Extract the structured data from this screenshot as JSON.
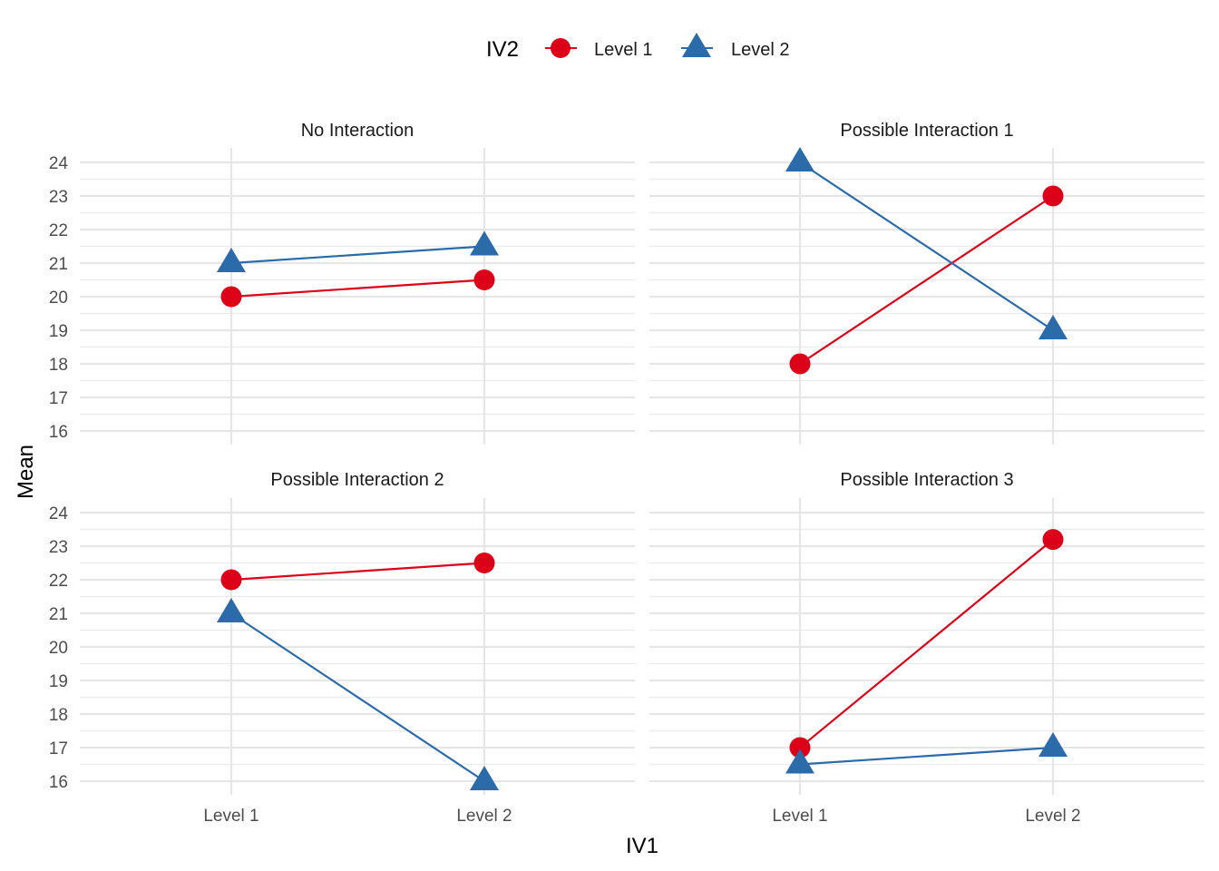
{
  "chart_data": {
    "type": "line",
    "xlabel": "IV1",
    "ylabel": "Mean",
    "ylim": [
      15.6,
      24.4
    ],
    "yticks": [
      16,
      17,
      18,
      19,
      20,
      21,
      22,
      23,
      24
    ],
    "categories": [
      "Level 1",
      "Level 2"
    ],
    "grid": true,
    "legend": {
      "title": "IV2",
      "placement": "top",
      "entries": [
        {
          "name": "Level 1",
          "color": "#DC0018",
          "shape": "circle"
        },
        {
          "name": "Level 2",
          "color": "#2C6BAA",
          "shape": "triangle"
        }
      ]
    },
    "panels": [
      {
        "title": "No Interaction",
        "series": [
          {
            "name": "Level 1",
            "values": [
              20,
              20.5
            ]
          },
          {
            "name": "Level 2",
            "values": [
              21,
              21.5
            ]
          }
        ]
      },
      {
        "title": "Possible Interaction 1",
        "series": [
          {
            "name": "Level 1",
            "values": [
              18,
              23
            ]
          },
          {
            "name": "Level 2",
            "values": [
              24,
              19
            ]
          }
        ]
      },
      {
        "title": "Possible Interaction 2",
        "series": [
          {
            "name": "Level 1",
            "values": [
              22,
              22.5
            ]
          },
          {
            "name": "Level 2",
            "values": [
              21,
              16
            ]
          }
        ]
      },
      {
        "title": "Possible Interaction 3",
        "series": [
          {
            "name": "Level 1",
            "values": [
              17,
              23.2
            ]
          },
          {
            "name": "Level 2",
            "values": [
              16.5,
              17
            ]
          }
        ]
      }
    ]
  }
}
